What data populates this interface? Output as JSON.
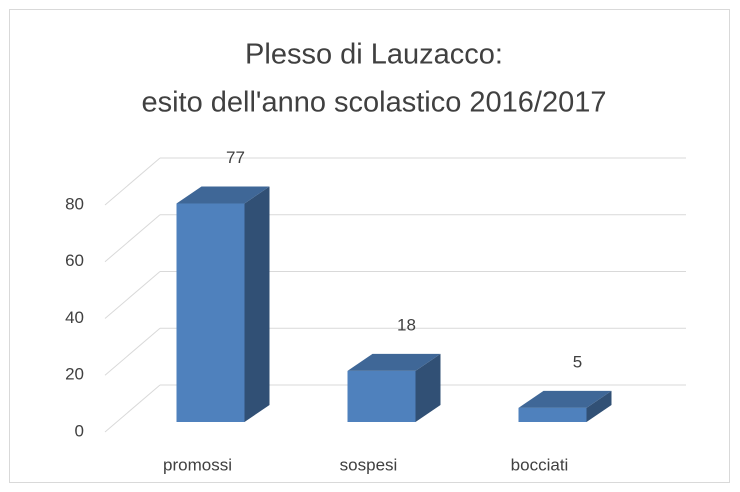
{
  "chart_data": {
    "type": "bar3d",
    "title": [
      "Plesso di Lauzacco:",
      "esito dell'anno scolastico 2016/2017"
    ],
    "categories": [
      "promossi",
      "sospesi",
      "bocciati"
    ],
    "values": [
      77,
      18,
      5
    ],
    "color": "#4f81bd",
    "ylim": [
      0,
      80
    ],
    "yticks": [
      0,
      20,
      40,
      60,
      80
    ],
    "grid": true
  }
}
